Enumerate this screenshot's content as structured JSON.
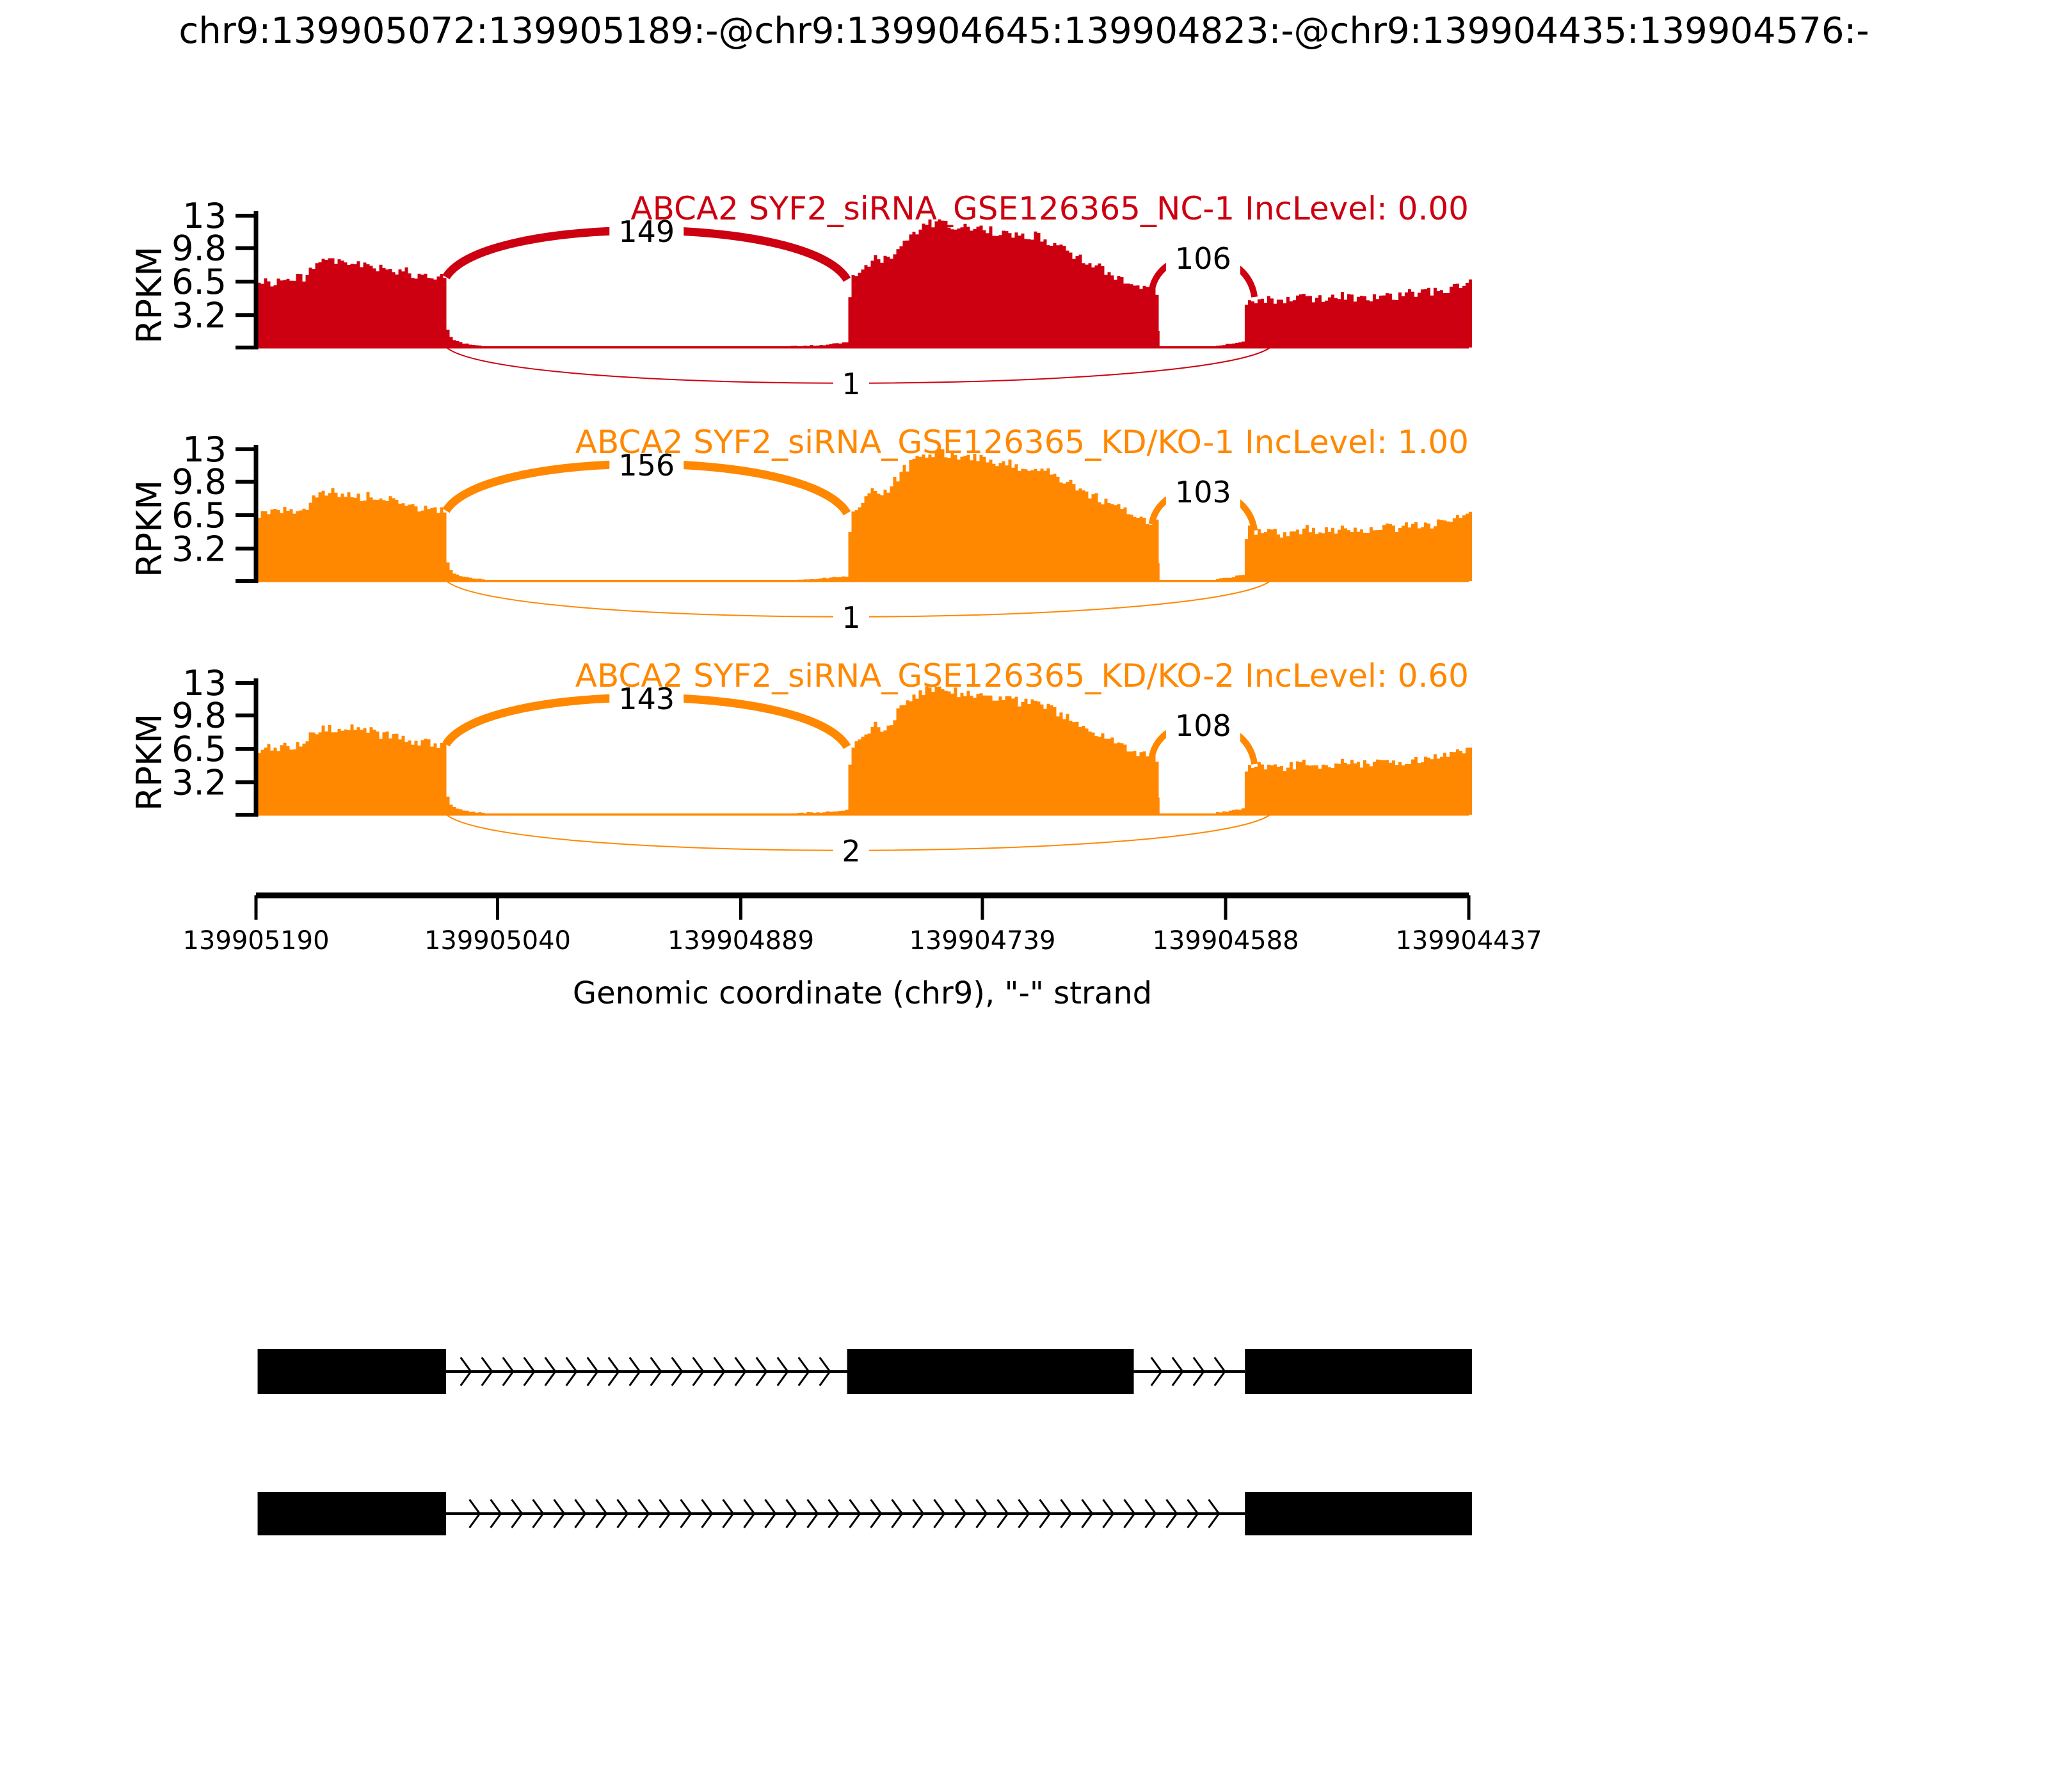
{
  "figure": {
    "background": "#ffffff"
  },
  "chart_data": {
    "type": "sashimi",
    "title": "chr9:139905072:139905189:-@chr9:139904645:139904823:-@chr9:139904435:139904576:-",
    "xlabel": "Genomic coordinate (chr9), \"-\" strand",
    "ylabel": "RPKM",
    "chrom": "chr9",
    "strand": "-",
    "x_axis": {
      "tick_labels": [
        "139905190",
        "139905040",
        "139904889",
        "139904739",
        "139904588",
        "139904437"
      ],
      "tick_values": [
        139905190,
        139905040,
        139904889,
        139904739,
        139904588,
        139904437
      ],
      "direction": "decreasing"
    },
    "y_axis": {
      "tick_labels": [
        "3.2",
        "6.5",
        "9.8",
        "13"
      ],
      "tick_values": [
        3.2,
        6.5,
        9.8,
        13
      ],
      "max": 13
    },
    "event_exons": [
      {
        "name": "upstream-exon",
        "start": 139905072,
        "end": 139905189
      },
      {
        "name": "skipped-exon",
        "start": 139904645,
        "end": 139904823
      },
      {
        "name": "downstream-exon",
        "start": 139904435,
        "end": 139904576
      }
    ],
    "tracks": [
      {
        "label": "ABCA2 SYF2_siRNA_GSE126365_NC-1 IncLevel: 0.00",
        "gene": "ABCA2",
        "sample": "SYF2_siRNA_GSE126365_NC-1",
        "inc_level": "0.00",
        "color": "#CC0011",
        "junction_reads": {
          "upstream_to_skipped": "149",
          "skipped_to_downstream": "106",
          "upstream_to_downstream": "1"
        },
        "noise_seed": 3,
        "scale": 1.0
      },
      {
        "label": "ABCA2 SYF2_siRNA_GSE126365_KD/KO-1 IncLevel: 1.00",
        "gene": "ABCA2",
        "sample": "SYF2_siRNA_GSE126365_KD/KO-1",
        "inc_level": "1.00",
        "color": "#FF8800",
        "junction_reads": {
          "upstream_to_skipped": "156",
          "skipped_to_downstream": "103",
          "upstream_to_downstream": "1"
        },
        "noise_seed": 7,
        "scale": 1.03
      },
      {
        "label": "ABCA2 SYF2_siRNA_GSE126365_KD/KO-2 IncLevel: 0.60",
        "gene": "ABCA2",
        "sample": "SYF2_siRNA_GSE126365_KD/KO-2",
        "inc_level": "0.60",
        "color": "#FF8800",
        "junction_reads": {
          "upstream_to_skipped": "143",
          "skipped_to_downstream": "108",
          "upstream_to_downstream": "2"
        },
        "noise_seed": 11,
        "scale": 1.01
      }
    ],
    "coverage_profile": [
      {
        "g0": 139905189,
        "g1": 139905048,
        "env": [
          [
            0,
            6.3
          ],
          [
            0.03,
            6.6
          ],
          [
            0.06,
            6.4
          ],
          [
            0.1,
            6.8
          ],
          [
            0.14,
            6.6
          ],
          [
            0.18,
            6.9
          ],
          [
            0.21,
            7.0
          ],
          [
            0.235,
            8.1
          ],
          [
            0.27,
            8.3
          ],
          [
            0.32,
            8.5
          ],
          [
            0.37,
            8.2
          ],
          [
            0.41,
            8.4
          ],
          [
            0.45,
            8.0
          ],
          [
            0.5,
            8.2
          ],
          [
            0.54,
            7.7
          ],
          [
            0.57,
            7.9
          ],
          [
            0.62,
            7.3
          ],
          [
            0.65,
            7.5
          ],
          [
            0.7,
            6.9
          ],
          [
            0.73,
            7.1
          ],
          [
            0.77,
            6.7
          ],
          [
            0.8,
            6.9
          ],
          [
            0.825,
            6.8
          ],
          [
            0.832,
            1.3
          ],
          [
            0.86,
            0.7
          ],
          [
            0.9,
            0.4
          ],
          [
            1,
            0.15
          ]
        ]
      },
      {
        "g0": 139904858,
        "g1": 139904629,
        "env": [
          [
            0,
            0.12
          ],
          [
            0.08,
            0.25
          ],
          [
            0.14,
            0.45
          ],
          [
            0.152,
            0.5
          ],
          [
            0.158,
            6.6
          ],
          [
            0.18,
            7.2
          ],
          [
            0.2,
            7.9
          ],
          [
            0.22,
            8.8
          ],
          [
            0.245,
            8.4
          ],
          [
            0.27,
            9.2
          ],
          [
            0.3,
            10.6
          ],
          [
            0.33,
            11.4
          ],
          [
            0.36,
            12.1
          ],
          [
            0.4,
            12.4
          ],
          [
            0.44,
            12.0
          ],
          [
            0.48,
            11.7
          ],
          [
            0.52,
            11.9
          ],
          [
            0.55,
            11.3
          ],
          [
            0.58,
            11.5
          ],
          [
            0.62,
            10.9
          ],
          [
            0.66,
            11.0
          ],
          [
            0.7,
            10.4
          ],
          [
            0.74,
            9.6
          ],
          [
            0.78,
            8.8
          ],
          [
            0.82,
            8.1
          ],
          [
            0.86,
            7.4
          ],
          [
            0.9,
            6.7
          ],
          [
            0.94,
            6.1
          ],
          [
            0.97,
            5.8
          ],
          [
            0.99,
            5.6
          ],
          [
            1,
            0.5
          ]
        ]
      },
      {
        "g0": 139904594,
        "g1": 139904435,
        "env": [
          [
            0,
            0.2
          ],
          [
            0.06,
            0.4
          ],
          [
            0.1,
            0.6
          ],
          [
            0.115,
            5.0
          ],
          [
            0.15,
            4.7
          ],
          [
            0.2,
            4.9
          ],
          [
            0.25,
            4.6
          ],
          [
            0.3,
            4.8
          ],
          [
            0.35,
            5.0
          ],
          [
            0.4,
            4.8
          ],
          [
            0.45,
            4.9
          ],
          [
            0.5,
            5.1
          ],
          [
            0.55,
            4.9
          ],
          [
            0.6,
            5.0
          ],
          [
            0.65,
            5.2
          ],
          [
            0.7,
            5.1
          ],
          [
            0.75,
            5.3
          ],
          [
            0.8,
            5.4
          ],
          [
            0.85,
            5.5
          ],
          [
            0.9,
            5.7
          ],
          [
            0.94,
            6.1
          ],
          [
            0.97,
            6.4
          ],
          [
            1,
            6.6
          ]
        ]
      }
    ],
    "isoforms": [
      {
        "name": "inclusion-isoform",
        "exons": [
          0,
          1,
          2
        ]
      },
      {
        "name": "skipping-isoform",
        "exons": [
          0,
          2
        ]
      }
    ]
  }
}
